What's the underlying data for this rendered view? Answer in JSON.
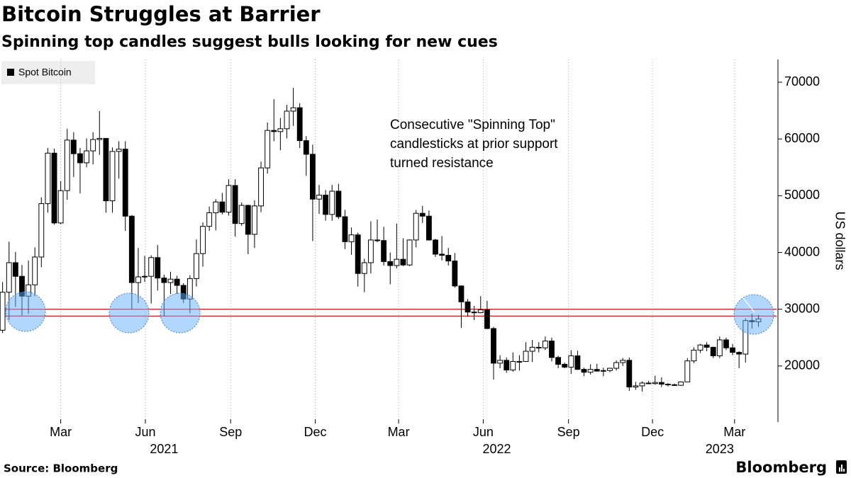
{
  "chart_data": {
    "type": "candlestick",
    "title": "Bitcoin Struggles at Barrier",
    "subtitle": "Spinning top candles suggest bulls looking for new cues",
    "legend": {
      "name": "Spot Bitcoin",
      "color": "#000000",
      "corner": "top-left"
    },
    "y_axis_label": "US dollars",
    "annotation": [
      "Consecutive \"Spinning Top\"",
      "candlesticks at prior support",
      "turned resistance"
    ],
    "source": "Source: Bloomberg",
    "brand": "Bloomberg",
    "up_color": "#ffffff",
    "down_color": "#000000",
    "reference_lines": {
      "color": "#cc0000",
      "values": [
        30000,
        28800
      ]
    },
    "categories": [
      null,
      null,
      null,
      null,
      null,
      null,
      null,
      null,
      null,
      null,
      null,
      null,
      null,
      null,
      null,
      null,
      null,
      null,
      null,
      null,
      null,
      null,
      null,
      null,
      null,
      null,
      null,
      null,
      null,
      null,
      null,
      null,
      null,
      null,
      null,
      null,
      null,
      null,
      null,
      null,
      null,
      null,
      null,
      null,
      null,
      null,
      null,
      null,
      null,
      null,
      null,
      null,
      null,
      null,
      null,
      null,
      null,
      null,
      null,
      null,
      null,
      null,
      null,
      null,
      null,
      null,
      null,
      null,
      null,
      null,
      null,
      null,
      null,
      null,
      null,
      null,
      null,
      null,
      null,
      null,
      null,
      null,
      null,
      null,
      null,
      null,
      null,
      null,
      null,
      null,
      null,
      null,
      null,
      null,
      null,
      null,
      null,
      null,
      null,
      null,
      null,
      null,
      null,
      null,
      null,
      null,
      null,
      null,
      null,
      null,
      null,
      null,
      null,
      null,
      null,
      null,
      null,
      null
    ],
    "open": [
      26300,
      33000,
      38200,
      35800,
      32300,
      34300,
      39200,
      48600,
      57500,
      45200,
      50900,
      59800,
      57400,
      55800,
      57900,
      59900,
      60100,
      49100,
      57800,
      58200,
      46400,
      34700,
      35700,
      35800,
      39100,
      35500,
      34700,
      35300,
      34200,
      31800,
      35400,
      39800,
      44600,
      47000,
      48900,
      47100,
      51800,
      45100,
      48300,
      43200,
      48200,
      54900,
      61500,
      61300,
      61800,
      64900,
      65500,
      59700,
      57300,
      49400,
      50100,
      46700,
      50800,
      46300,
      41900,
      43100,
      36300,
      38200,
      42200,
      42100,
      38400,
      37700,
      38800,
      37800,
      42200,
      46900,
      46400,
      42200,
      39700,
      39500,
      38500,
      34100,
      31300,
      29500,
      29400,
      29900,
      26600,
      20500,
      21000,
      19300,
      20800,
      20800,
      22600,
      23300,
      23200,
      24400,
      21500,
      20300,
      19800,
      21800,
      19400,
      18900,
      19400,
      19100,
      19200,
      19600,
      20600,
      21000,
      16300,
      16500,
      17000,
      16900,
      17100,
      16800,
      16700,
      16600,
      17200,
      20900,
      22800,
      23700,
      23300,
      21800,
      24600,
      23200,
      22400,
      22100,
      28000,
      27800
    ],
    "high": [
      34800,
      41900,
      40100,
      37800,
      38600,
      40900,
      49700,
      58400,
      58300,
      52600,
      61800,
      61200,
      58400,
      60100,
      61200,
      64900,
      60100,
      58500,
      59600,
      59600,
      46600,
      40800,
      39400,
      39500,
      41300,
      36100,
      36600,
      35900,
      34600,
      36000,
      42300,
      45300,
      48100,
      49400,
      50500,
      52900,
      52900,
      48800,
      48400,
      49200,
      56000,
      62900,
      67000,
      63700,
      66000,
      69000,
      66300,
      60500,
      59000,
      51900,
      51000,
      51900,
      52100,
      47500,
      44400,
      43500,
      38900,
      45500,
      45800,
      44500,
      40000,
      45100,
      42500,
      42300,
      47500,
      48200,
      47400,
      42400,
      42900,
      40800,
      39900,
      34200,
      31800,
      30600,
      32300,
      31500,
      26900,
      21900,
      21500,
      22400,
      21900,
      24200,
      24600,
      24200,
      25200,
      25000,
      21800,
      20600,
      22800,
      22700,
      19700,
      20300,
      20400,
      19700,
      19700,
      21000,
      21400,
      21500,
      17200,
      17300,
      17400,
      18300,
      18000,
      17000,
      16900,
      17300,
      21400,
      23300,
      23900,
      24200,
      23400,
      25200,
      25000,
      23900,
      22600,
      28400,
      29200,
      29000
    ],
    "low": [
      25800,
      28100,
      30400,
      28900,
      29200,
      32300,
      37400,
      47000,
      44900,
      45000,
      49300,
      53300,
      50400,
      55000,
      55500,
      57200,
      47000,
      47000,
      53000,
      43800,
      30000,
      31100,
      34800,
      31000,
      33300,
      28800,
      32700,
      32700,
      31100,
      29300,
      34000,
      37500,
      43800,
      43900,
      46700,
      46500,
      42800,
      44700,
      39700,
      40800,
      47100,
      53900,
      59600,
      58000,
      60100,
      62300,
      58400,
      53500,
      42000,
      46800,
      45600,
      45600,
      45900,
      40600,
      39600,
      34000,
      33000,
      36300,
      41800,
      37700,
      34400,
      37200,
      37600,
      37600,
      40900,
      45200,
      42100,
      39200,
      38600,
      37700,
      33800,
      26700,
      28700,
      28100,
      29300,
      26500,
      17600,
      19600,
      18800,
      19000,
      19200,
      20700,
      20700,
      22400,
      22800,
      20800,
      19600,
      19600,
      18600,
      19300,
      18200,
      18500,
      19000,
      18200,
      18900,
      19200,
      20000,
      15600,
      15800,
      15500,
      16800,
      16700,
      16300,
      16400,
      16500,
      16500,
      17200,
      20500,
      22300,
      22600,
      21400,
      21400,
      22800,
      21900,
      19600,
      20600,
      26600,
      26900
    ],
    "close": [
      33000,
      38200,
      35800,
      32300,
      34300,
      39200,
      48600,
      57500,
      45200,
      50900,
      59800,
      57400,
      55800,
      57900,
      59900,
      60100,
      49100,
      57800,
      58200,
      46400,
      34700,
      35700,
      35800,
      39100,
      35500,
      34700,
      35300,
      34200,
      31800,
      35400,
      39800,
      44600,
      47000,
      48900,
      47100,
      51800,
      45100,
      48300,
      43200,
      48200,
      54900,
      61500,
      61300,
      61800,
      64900,
      65500,
      59700,
      57300,
      49400,
      50100,
      46700,
      50800,
      46300,
      41900,
      43100,
      36300,
      38200,
      42200,
      42100,
      38400,
      37700,
      38800,
      37800,
      42200,
      46900,
      46400,
      42200,
      39700,
      39500,
      38500,
      34100,
      31300,
      29500,
      29400,
      29900,
      26600,
      20500,
      21000,
      19300,
      20800,
      20800,
      22600,
      23300,
      23200,
      24400,
      21500,
      20300,
      19800,
      21800,
      19400,
      18900,
      19400,
      19100,
      19200,
      19600,
      20600,
      21000,
      16300,
      16500,
      17000,
      16900,
      17100,
      16800,
      16700,
      16600,
      17200,
      20900,
      22800,
      23700,
      23300,
      21800,
      24600,
      23200,
      22400,
      22100,
      28000,
      27800,
      28300
    ],
    "xlim": [
      -0.4,
      119.8
    ],
    "xticks": [
      {
        "value": 9,
        "label": "Mar"
      },
      {
        "value": 22.1,
        "label": "Jun"
      },
      {
        "value": 35.3,
        "label": "Sep"
      },
      {
        "value": 48.4,
        "label": "Dec"
      },
      {
        "value": 61.3,
        "label": "Mar"
      },
      {
        "value": 74.4,
        "label": "Jun"
      },
      {
        "value": 87.6,
        "label": "Sep"
      },
      {
        "value": 100.6,
        "label": "Dec"
      },
      {
        "value": 113.3,
        "label": "Mar"
      }
    ],
    "xticks_years": [
      {
        "value": 25,
        "label": "2021"
      },
      {
        "value": 76.5,
        "label": "2022"
      },
      {
        "value": 111,
        "label": "2023"
      }
    ],
    "ylim": [
      10000,
      74000
    ],
    "yticks": [
      20000,
      30000,
      40000,
      50000,
      60000,
      70000
    ],
    "grid": "x"
  }
}
